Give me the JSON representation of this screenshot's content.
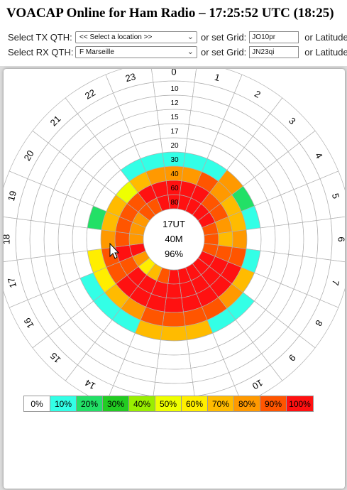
{
  "header": {
    "title": "VOACAP Online for Ham Radio – 17:25:52 UTC (18:25)"
  },
  "tx": {
    "label": "Select TX QTH:",
    "location_value": "<< Select a location >>",
    "grid_label": "or set Grid:",
    "grid_value": "JO10pr",
    "lat_label": "or Latitude"
  },
  "rx": {
    "label": "Select RX QTH:",
    "location_value": "F Marseille",
    "grid_label": "or set Grid:",
    "grid_value": "JN23qi",
    "lat_label": "or Latitude"
  },
  "chart_data": {
    "type": "heatmap",
    "center": {
      "time": "17UT",
      "band": "40M",
      "reliability": "96%"
    },
    "hours": [
      "0",
      "1",
      "2",
      "3",
      "4",
      "5",
      "6",
      "7",
      "8",
      "9",
      "10",
      "11",
      "12",
      "13",
      "14",
      "15",
      "16",
      "17",
      "18",
      "19",
      "20",
      "21",
      "22",
      "23"
    ],
    "ring_labels": [
      "80",
      "60",
      "40",
      "30",
      "20",
      "17",
      "15",
      "12",
      "10"
    ],
    "reliability": {
      "80": [
        100,
        100,
        100,
        100,
        100,
        90,
        90,
        90,
        100,
        100,
        100,
        100,
        100,
        90,
        70,
        60,
        80,
        100,
        80,
        80,
        80,
        90,
        90,
        100
      ],
      "60": [
        100,
        100,
        100,
        90,
        90,
        80,
        70,
        90,
        100,
        100,
        100,
        100,
        100,
        100,
        100,
        100,
        90,
        100,
        90,
        90,
        90,
        90,
        100,
        100
      ],
      "40": [
        80,
        80,
        90,
        80,
        70,
        70,
        80,
        90,
        100,
        100,
        100,
        100,
        100,
        100,
        100,
        100,
        90,
        90,
        80,
        70,
        70,
        50,
        70,
        80
      ],
      "30": [
        10,
        10,
        10,
        80,
        20,
        10,
        0,
        10,
        70,
        80,
        90,
        90,
        90,
        90,
        80,
        70,
        60,
        60,
        0,
        20,
        0,
        0,
        10,
        10
      ],
      "20": [
        0,
        0,
        0,
        0,
        0,
        0,
        0,
        0,
        0,
        10,
        10,
        70,
        70,
        70,
        10,
        10,
        10,
        0,
        0,
        0,
        0,
        0,
        0,
        0
      ],
      "17": [
        0,
        0,
        0,
        0,
        0,
        0,
        0,
        0,
        0,
        0,
        0,
        0,
        0,
        0,
        0,
        0,
        0,
        0,
        0,
        0,
        0,
        0,
        0,
        0
      ],
      "15": [
        0,
        0,
        0,
        0,
        0,
        0,
        0,
        0,
        0,
        0,
        0,
        0,
        0,
        0,
        0,
        0,
        0,
        0,
        0,
        0,
        0,
        0,
        0,
        0
      ],
      "12": [
        0,
        0,
        0,
        0,
        0,
        0,
        0,
        0,
        0,
        0,
        0,
        0,
        0,
        0,
        0,
        0,
        0,
        0,
        0,
        0,
        0,
        0,
        0,
        0
      ],
      "10": [
        0,
        0,
        0,
        0,
        0,
        0,
        0,
        0,
        0,
        0,
        0,
        0,
        0,
        0,
        0,
        0,
        0,
        0,
        0,
        0,
        0,
        0,
        0,
        0
      ]
    },
    "legend": [
      {
        "label": "0%",
        "color": "#ffffff"
      },
      {
        "label": "10%",
        "color": "#33ffe6"
      },
      {
        "label": "20%",
        "color": "#22e066"
      },
      {
        "label": "30%",
        "color": "#22cc22"
      },
      {
        "label": "40%",
        "color": "#99ee00"
      },
      {
        "label": "50%",
        "color": "#eeff00"
      },
      {
        "label": "60%",
        "color": "#ffee00"
      },
      {
        "label": "70%",
        "color": "#ffbb00"
      },
      {
        "label": "80%",
        "color": "#ff9900"
      },
      {
        "label": "90%",
        "color": "#ff5500"
      },
      {
        "label": "100%",
        "color": "#ff1111"
      }
    ]
  }
}
